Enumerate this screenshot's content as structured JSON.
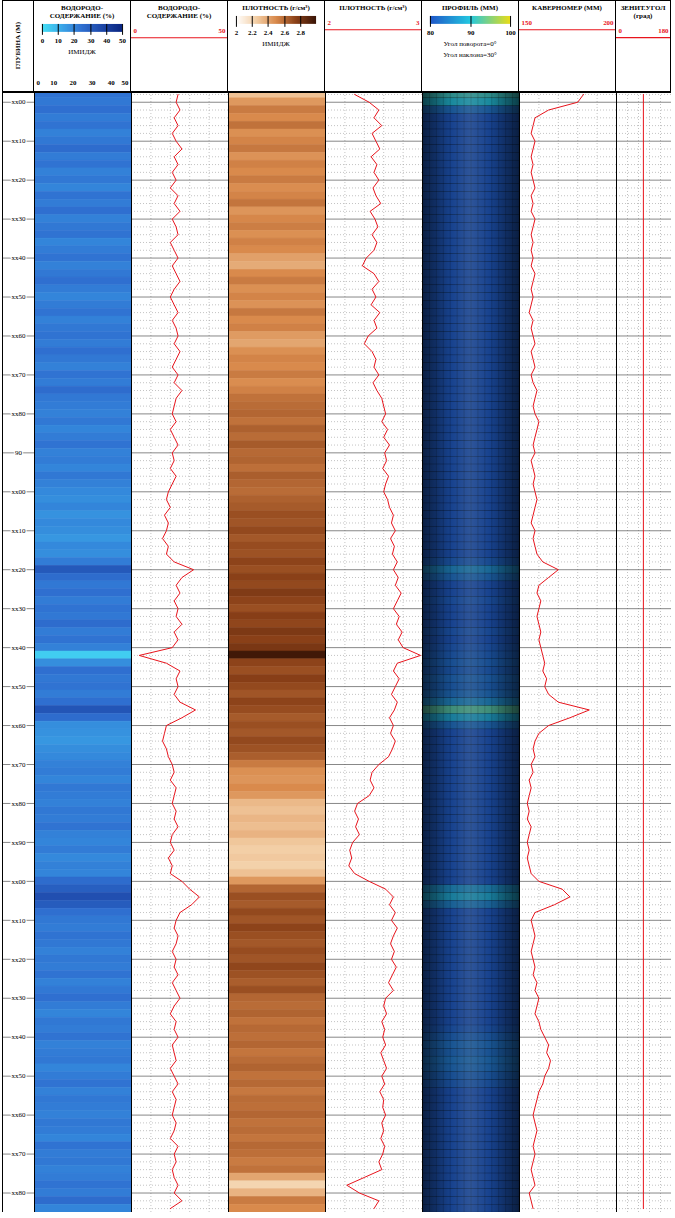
{
  "chart_data": {
    "type": "well_log",
    "ylabel": "ГЛУБИНА (М)",
    "ylim": [
      -2.5,
      285
    ],
    "yticks": [
      {
        "value": 0,
        "label": "xx00"
      },
      {
        "value": 10,
        "label": "xx10"
      },
      {
        "value": 20,
        "label": "xx20"
      },
      {
        "value": 30,
        "label": "xx30"
      },
      {
        "value": 40,
        "label": "xx40"
      },
      {
        "value": 50,
        "label": "xx50"
      },
      {
        "value": 60,
        "label": "xx60"
      },
      {
        "value": 70,
        "label": "xx70"
      },
      {
        "value": 80,
        "label": "xx80"
      },
      90,
      {
        "value": 100,
        "label": "xx00"
      },
      {
        "value": 110,
        "label": "xx10"
      },
      {
        "value": 120,
        "label": "xx20"
      },
      {
        "value": 130,
        "label": "xx30"
      },
      {
        "value": 140,
        "label": "xx40"
      },
      {
        "value": 150,
        "label": "xx50"
      },
      {
        "value": 160,
        "label": "xx60"
      },
      {
        "value": 170,
        "label": "xx70"
      },
      {
        "value": 180,
        "label": "xx80"
      },
      {
        "value": 190,
        "label": "xx90"
      },
      {
        "value": 200,
        "label": "xx00"
      },
      {
        "value": 210,
        "label": "xx10"
      },
      {
        "value": 220,
        "label": "xx20"
      },
      {
        "value": 230,
        "label": "xx30"
      },
      {
        "value": 240,
        "label": "xx40"
      },
      {
        "value": 250,
        "label": "xx50"
      },
      {
        "value": 260,
        "label": "xx60"
      },
      {
        "value": 270,
        "label": "xx70"
      },
      {
        "value": 280,
        "label": "xx80"
      }
    ],
    "grid": true,
    "y": [
      -2,
      0,
      2,
      4,
      6,
      8,
      10,
      12,
      14,
      16,
      18,
      20,
      22,
      24,
      26,
      28,
      30,
      32,
      34,
      36,
      38,
      40,
      42,
      44,
      46,
      48,
      50,
      52,
      54,
      56,
      58,
      60,
      62,
      64,
      66,
      68,
      70,
      72,
      74,
      76,
      78,
      80,
      82,
      84,
      86,
      88,
      90,
      92,
      94,
      96,
      98,
      100,
      102,
      104,
      106,
      108,
      110,
      112,
      114,
      116,
      118,
      120,
      122,
      124,
      126,
      128,
      130,
      132,
      134,
      136,
      138,
      140,
      142,
      144,
      146,
      148,
      150,
      152,
      154,
      156,
      158,
      160,
      162,
      164,
      166,
      168,
      170,
      172,
      174,
      176,
      178,
      180,
      182,
      184,
      186,
      188,
      190,
      192,
      194,
      196,
      198,
      200,
      202,
      204,
      206,
      208,
      210,
      212,
      214,
      216,
      218,
      220,
      222,
      224,
      226,
      228,
      230,
      232,
      234,
      236,
      238,
      240,
      242,
      244,
      246,
      248,
      250,
      252,
      254,
      256,
      258,
      260,
      262,
      264,
      266,
      268,
      270,
      272,
      274,
      276,
      278,
      280,
      282,
      284
    ],
    "series": [
      {
        "name": "ВОДОРОДО-СОДЕРЖАНИЕ (%)",
        "color": "#e8141c",
        "xlim": [
          0,
          50
        ],
        "xticks": [
          0,
          50
        ],
        "values": [
          24,
          23,
          25,
          22,
          24,
          21,
          23,
          26,
          22,
          24,
          21,
          23,
          20,
          24,
          22,
          25,
          21,
          23,
          24,
          20,
          22,
          24,
          21,
          23,
          25,
          22,
          20,
          22,
          24,
          21,
          23,
          24,
          22,
          25,
          23,
          21,
          24,
          22,
          26,
          23,
          22,
          21,
          23,
          20,
          22,
          24,
          21,
          22,
          20,
          23,
          21,
          19,
          18,
          20,
          17,
          19,
          18,
          16,
          19,
          18,
          22,
          32,
          26,
          23,
          25,
          22,
          24,
          23,
          26,
          22,
          24,
          21,
          4,
          18,
          25,
          23,
          24,
          22,
          25,
          33,
          26,
          18,
          17,
          16,
          18,
          19,
          21,
          22,
          20,
          23,
          22,
          21,
          23,
          22,
          24,
          21,
          20,
          22,
          19,
          21,
          20,
          26,
          30,
          35,
          31,
          25,
          23,
          22,
          24,
          23,
          21,
          23,
          22,
          24,
          21,
          23,
          25,
          22,
          20,
          23,
          22,
          24,
          21,
          22,
          23,
          20,
          22,
          24,
          21,
          23,
          22,
          21,
          23,
          22,
          20,
          24,
          22,
          23,
          21,
          22,
          24,
          22,
          26,
          20
        ],
        "image": {
          "label": "ИМИДЖ",
          "xlim": [
            0,
            50
          ],
          "xticks": [
            0,
            10,
            20,
            30,
            40,
            50
          ],
          "colorbar": {
            "range": [
              0,
              50
            ],
            "ticks": [
              0,
              10,
              20,
              30,
              40,
              50
            ],
            "colors": [
              "#45e0f5",
              "#3aa6e8",
              "#2f6fd0",
              "#1d47a8",
              "#0a2580"
            ]
          }
        }
      },
      {
        "name": "ПЛОТНОСТЬ (г/см³)",
        "color": "#e8141c",
        "xlim": [
          2,
          3
        ],
        "xticks": [
          2,
          3
        ],
        "values": [
          2.3,
          2.45,
          2.55,
          2.5,
          2.58,
          2.48,
          2.52,
          2.56,
          2.47,
          2.53,
          2.5,
          2.55,
          2.49,
          2.52,
          2.57,
          2.46,
          2.51,
          2.54,
          2.48,
          2.53,
          2.5,
          2.42,
          2.38,
          2.5,
          2.55,
          2.48,
          2.52,
          2.47,
          2.56,
          2.5,
          2.53,
          2.44,
          2.4,
          2.48,
          2.52,
          2.5,
          2.55,
          2.49,
          2.53,
          2.58,
          2.6,
          2.62,
          2.58,
          2.64,
          2.6,
          2.66,
          2.61,
          2.63,
          2.59,
          2.65,
          2.62,
          2.6,
          2.64,
          2.66,
          2.7,
          2.68,
          2.72,
          2.67,
          2.71,
          2.69,
          2.74,
          2.7,
          2.75,
          2.72,
          2.78,
          2.74,
          2.7,
          2.76,
          2.73,
          2.79,
          2.75,
          2.8,
          2.98,
          2.74,
          2.7,
          2.76,
          2.72,
          2.68,
          2.74,
          2.71,
          2.66,
          2.7,
          2.67,
          2.72,
          2.69,
          2.65,
          2.55,
          2.48,
          2.46,
          2.5,
          2.45,
          2.33,
          2.3,
          2.34,
          2.31,
          2.35,
          2.28,
          2.25,
          2.27,
          2.24,
          2.3,
          2.45,
          2.62,
          2.7,
          2.66,
          2.72,
          2.68,
          2.74,
          2.7,
          2.67,
          2.71,
          2.68,
          2.73,
          2.69,
          2.65,
          2.7,
          2.62,
          2.6,
          2.63,
          2.58,
          2.61,
          2.59,
          2.62,
          2.57,
          2.6,
          2.63,
          2.58,
          2.61,
          2.56,
          2.6,
          2.59,
          2.62,
          2.58,
          2.6,
          2.57,
          2.61,
          2.59,
          2.55,
          2.58,
          2.4,
          2.22,
          2.35,
          2.55,
          2.5
        ],
        "image": {
          "label": "ИМИДЖ",
          "colorbar": {
            "range": [
              2,
              3
            ],
            "ticks": [
              2,
              2.2,
              2.4,
              2.6,
              2.8
            ],
            "colors": [
              "#ffffff",
              "#f3cfa6",
              "#d98a4c",
              "#8a4018",
              "#3a1406"
            ]
          }
        }
      },
      {
        "name": "КАВЕРНОМЕР (ММ)",
        "color": "#e8141c",
        "xlim": [
          150,
          200
        ],
        "xticks": [
          150,
          200
        ],
        "values": [
          183,
          180,
          165,
          158,
          157,
          156,
          158,
          157,
          156,
          157,
          156,
          157,
          158,
          156,
          157,
          156,
          158,
          157,
          156,
          157,
          156,
          157,
          156,
          158,
          157,
          156,
          157,
          156,
          155,
          157,
          156,
          157,
          158,
          156,
          157,
          158,
          156,
          157,
          159,
          158,
          157,
          158,
          160,
          159,
          158,
          157,
          158,
          156,
          157,
          158,
          157,
          158,
          159,
          158,
          157,
          156,
          158,
          157,
          158,
          159,
          162,
          170,
          165,
          160,
          159,
          161,
          160,
          159,
          160,
          161,
          160,
          161,
          162,
          163,
          162,
          164,
          163,
          165,
          170,
          186,
          176,
          165,
          160,
          158,
          157,
          158,
          156,
          157,
          155,
          156,
          155,
          154,
          155,
          154,
          156,
          155,
          154,
          155,
          154,
          155,
          156,
          160,
          172,
          176,
          168,
          158,
          156,
          157,
          158,
          157,
          156,
          157,
          158,
          157,
          159,
          158,
          160,
          159,
          158,
          160,
          161,
          163,
          165,
          164,
          166,
          165,
          163,
          162,
          160,
          159,
          158,
          157,
          158,
          159,
          158,
          157,
          158,
          157,
          156,
          157,
          158,
          155,
          156,
          157
        ],
        "profile": {
          "title": "ПРОФИЛЬ (ММ)",
          "colorbar": {
            "range": [
              80,
              100
            ],
            "ticks": [
              80,
              90,
              100
            ],
            "colors": [
              "#1f56c8",
              "#22c8e0",
              "#e8dc18"
            ]
          },
          "annotations": [
            "Угол поворота=0°",
            "Угол наклона=30°"
          ]
        }
      },
      {
        "name": "ЗЕНИТ.УГОЛ (град)",
        "color": "#e8141c",
        "xlim": [
          0,
          180
        ],
        "xticks": [
          0,
          180
        ],
        "y": [
          -2,
          284
        ],
        "values": [
          88,
          88
        ]
      }
    ]
  }
}
